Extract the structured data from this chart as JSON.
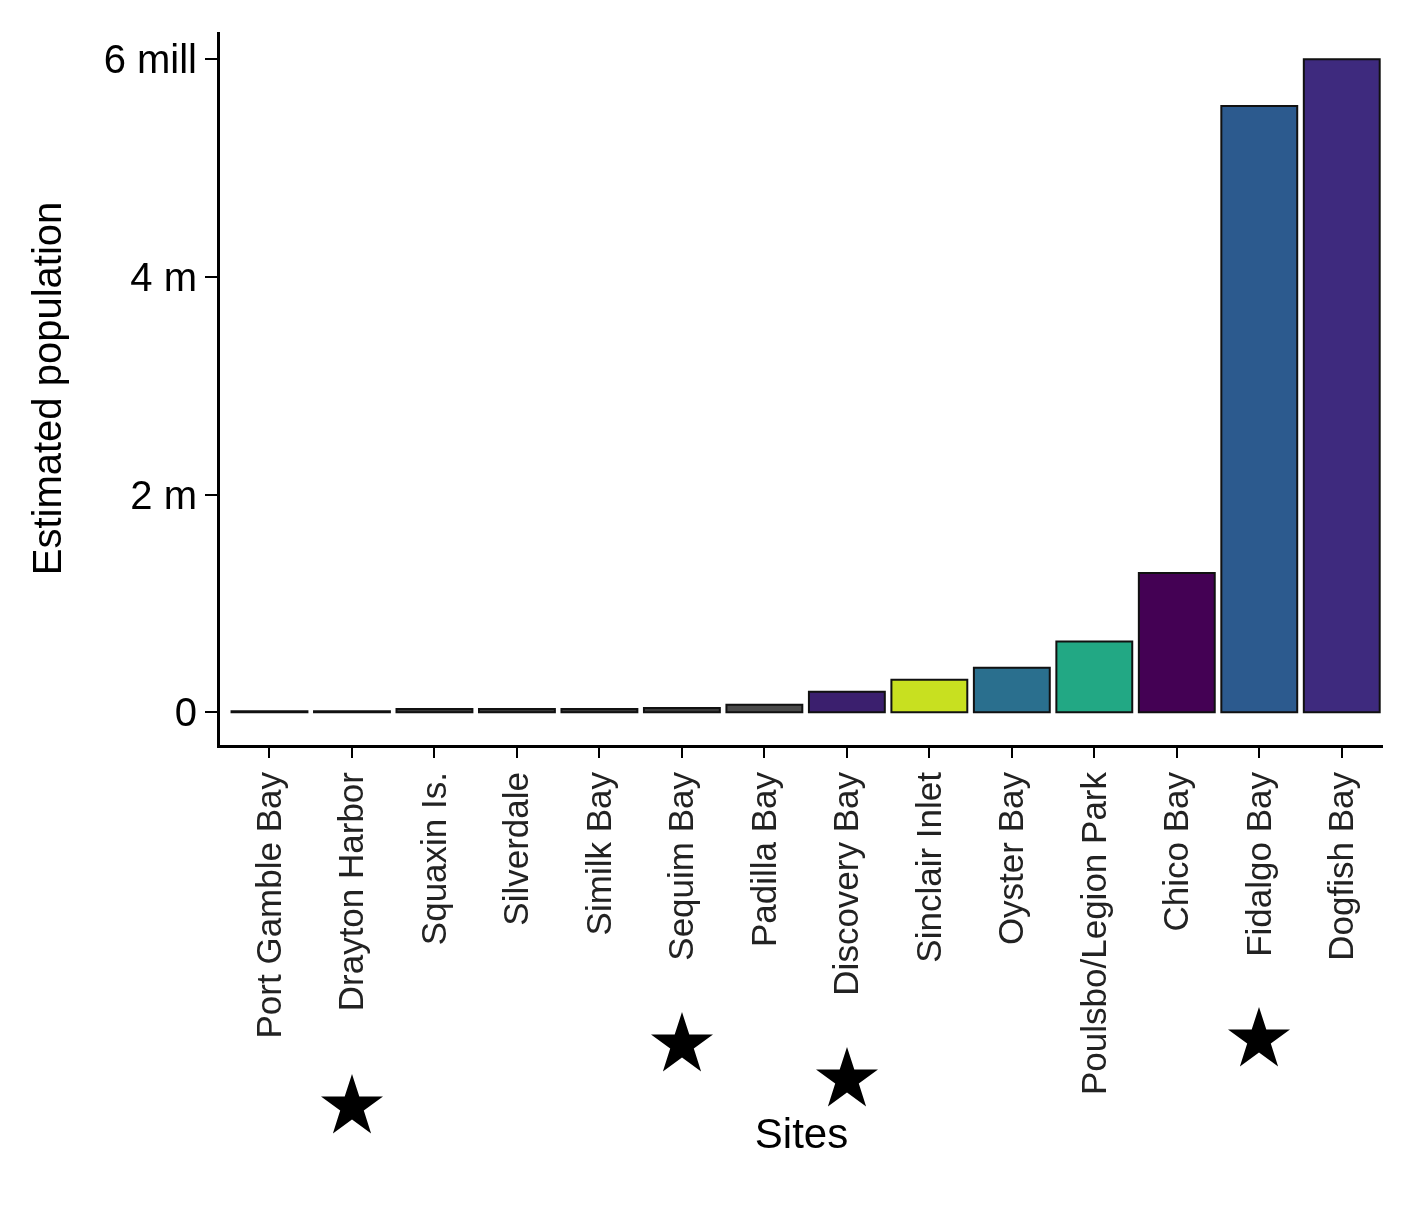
{
  "chart_data": {
    "type": "bar",
    "xlabel": "Sites",
    "ylabel": "Estimated population",
    "categories": [
      "Port Gamble Bay",
      "Drayton Harbor",
      "Squaxin Is.",
      "Silverdale",
      "Similk Bay",
      "Sequim Bay",
      "Padilla Bay",
      "Discovery Bay",
      "Sinclair Inlet",
      "Oyster Bay",
      "Poulsbo/Legion Park",
      "Chico Bay",
      "Fidalgo Bay",
      "Dogfish Bay"
    ],
    "values": [
      0.01,
      0.01,
      0.03,
      0.03,
      0.03,
      0.04,
      0.07,
      0.19,
      0.3,
      0.41,
      0.65,
      1.28,
      5.57,
      6.0
    ],
    "colors": [
      "#3a3a3a",
      "#3a3a3a",
      "#3a3a3a",
      "#3a3a3a",
      "#3a3a3a",
      "#3a3a3a",
      "#4a4a4a",
      "#3b1f6e",
      "#c8e020",
      "#2a6f8e",
      "#22a884",
      "#440154",
      "#2c5a8e",
      "#3e2a7e"
    ],
    "ylim": [
      -0.3,
      6.25
    ],
    "yticks": [
      0,
      {
        "value": 2,
        "label": "2 m"
      },
      {
        "value": 4,
        "label": "4 m"
      },
      {
        "value": 6,
        "label": "6 mill"
      }
    ],
    "grid": false
  }
}
